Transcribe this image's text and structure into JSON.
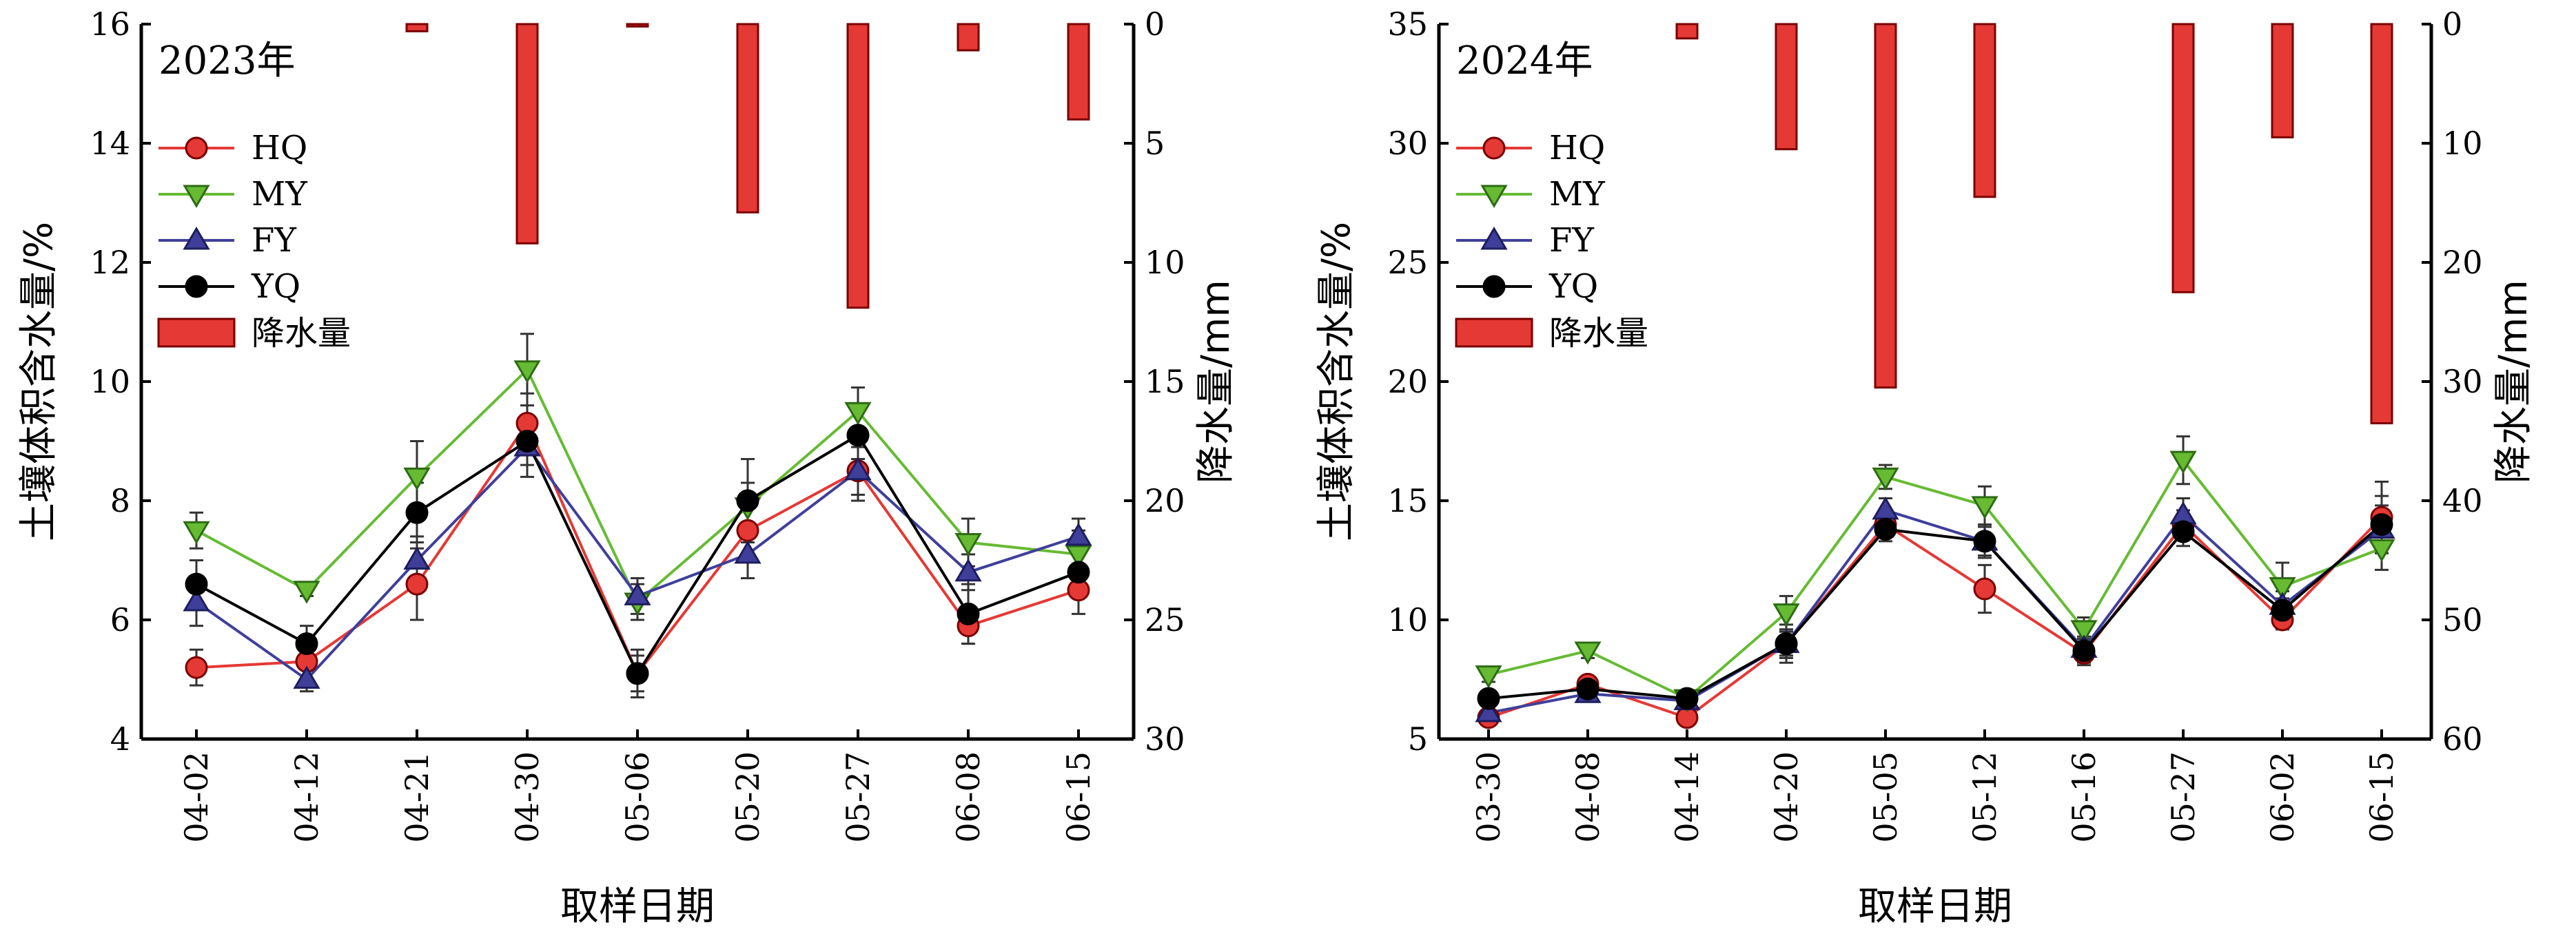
{
  "chart_data": [
    {
      "type": "line",
      "panel_label": "2023年",
      "categories": [
        "04-02",
        "04-12",
        "04-21",
        "04-30",
        "05-06",
        "05-20",
        "05-27",
        "06-08",
        "06-15"
      ],
      "xlabel": "取样日期",
      "ylabel": "土壤体积含水量/%",
      "ylabel_right": "降水量/mm",
      "ylim": [
        4,
        16
      ],
      "yticks": [
        4,
        6,
        8,
        10,
        12,
        14,
        16
      ],
      "ylim_right": [
        0,
        30
      ],
      "yticks_right": [
        0,
        5,
        10,
        15,
        20,
        25,
        30
      ],
      "right_axis_inverted": true,
      "series": [
        {
          "name": "HQ",
          "color": "#e53935",
          "marker": "circle",
          "values": [
            5.2,
            5.3,
            6.6,
            9.3,
            5.1,
            7.5,
            8.5,
            5.9,
            6.5
          ],
          "errors": [
            0.3,
            0.3,
            0.6,
            0.5,
            0.3,
            0.5,
            0.5,
            0.3,
            0.4
          ]
        },
        {
          "name": "MY",
          "color": "#66bb33",
          "marker": "triangle-down",
          "values": [
            7.5,
            6.5,
            8.4,
            10.2,
            6.3,
            7.9,
            9.5,
            7.3,
            7.1
          ],
          "errors": [
            0.3,
            0.1,
            0.6,
            0.6,
            0.3,
            0.4,
            0.4,
            0.4,
            0.4
          ]
        },
        {
          "name": "FY",
          "color": "#3f3f9a",
          "marker": "triangle-up",
          "values": [
            6.3,
            5.0,
            7.0,
            8.9,
            6.4,
            7.1,
            8.5,
            6.8,
            7.4
          ],
          "errors": [
            0.4,
            0.2,
            0.4,
            0.5,
            0.3,
            0.4,
            0.4,
            0.3,
            0.3
          ]
        },
        {
          "name": "YQ",
          "color": "#000000",
          "marker": "circle",
          "values": [
            6.6,
            5.6,
            7.8,
            9.0,
            5.1,
            8.0,
            9.1,
            6.1,
            6.8
          ],
          "errors": [
            0.4,
            0.3,
            0.5,
            0.4,
            0.4,
            0.7,
            0.4,
            0.5,
            0.4
          ]
        }
      ],
      "bars": {
        "name": "降水量",
        "color": "#e53935",
        "values": [
          0,
          0,
          0.3,
          9.2,
          0.1,
          7.9,
          11.9,
          1.1,
          4.0
        ]
      }
    },
    {
      "type": "line",
      "panel_label": "2024年",
      "categories": [
        "03-30",
        "04-08",
        "04-14",
        "04-20",
        "05-05",
        "05-12",
        "05-16",
        "05-27",
        "06-02",
        "06-15"
      ],
      "xlabel": "取样日期",
      "ylabel": "土壤体积含水量/%",
      "ylabel_right": "降水量/mm",
      "ylim": [
        5,
        35
      ],
      "yticks": [
        5,
        10,
        15,
        20,
        25,
        30,
        35
      ],
      "ylim_right": [
        0,
        60
      ],
      "yticks_right": [
        0,
        10,
        20,
        30,
        40,
        50,
        60
      ],
      "right_axis_inverted": true,
      "series": [
        {
          "name": "HQ",
          "color": "#e53935",
          "marker": "circle",
          "values": [
            5.9,
            7.3,
            5.9,
            9.0,
            14.0,
            11.3,
            8.6,
            14.0,
            10.0,
            14.3
          ],
          "errors": [
            0.3,
            0.3,
            0.3,
            0.5,
            0.5,
            1.0,
            0.5,
            0.6,
            0.4,
            1.5
          ]
        },
        {
          "name": "MY",
          "color": "#66bb33",
          "marker": "triangle-down",
          "values": [
            7.7,
            8.7,
            6.7,
            10.3,
            16.0,
            14.8,
            9.6,
            16.7,
            11.4,
            13.0
          ],
          "errors": [
            0.3,
            0.3,
            0.3,
            0.7,
            0.5,
            0.8,
            0.5,
            1.0,
            1.0,
            0.9
          ]
        },
        {
          "name": "FY",
          "color": "#3f3f9a",
          "marker": "triangle-up",
          "values": [
            6.1,
            6.9,
            6.6,
            9.0,
            14.6,
            13.3,
            8.8,
            14.4,
            10.6,
            13.8
          ],
          "errors": [
            0.3,
            0.3,
            0.3,
            0.6,
            0.5,
            0.7,
            0.5,
            0.7,
            0.6,
            1.0
          ]
        },
        {
          "name": "YQ",
          "color": "#000000",
          "marker": "circle",
          "values": [
            6.7,
            7.1,
            6.7,
            9.0,
            13.8,
            13.3,
            8.7,
            13.7,
            10.4,
            14.0
          ],
          "errors": [
            0.3,
            0.3,
            0.3,
            0.8,
            0.5,
            0.6,
            0.5,
            0.6,
            0.5,
            1.2
          ]
        }
      ],
      "bars": {
        "name": "降水量",
        "color": "#e53935",
        "values": [
          0,
          0,
          1.2,
          10.5,
          30.5,
          14.5,
          0,
          22.5,
          9.5,
          33.5
        ]
      }
    }
  ]
}
